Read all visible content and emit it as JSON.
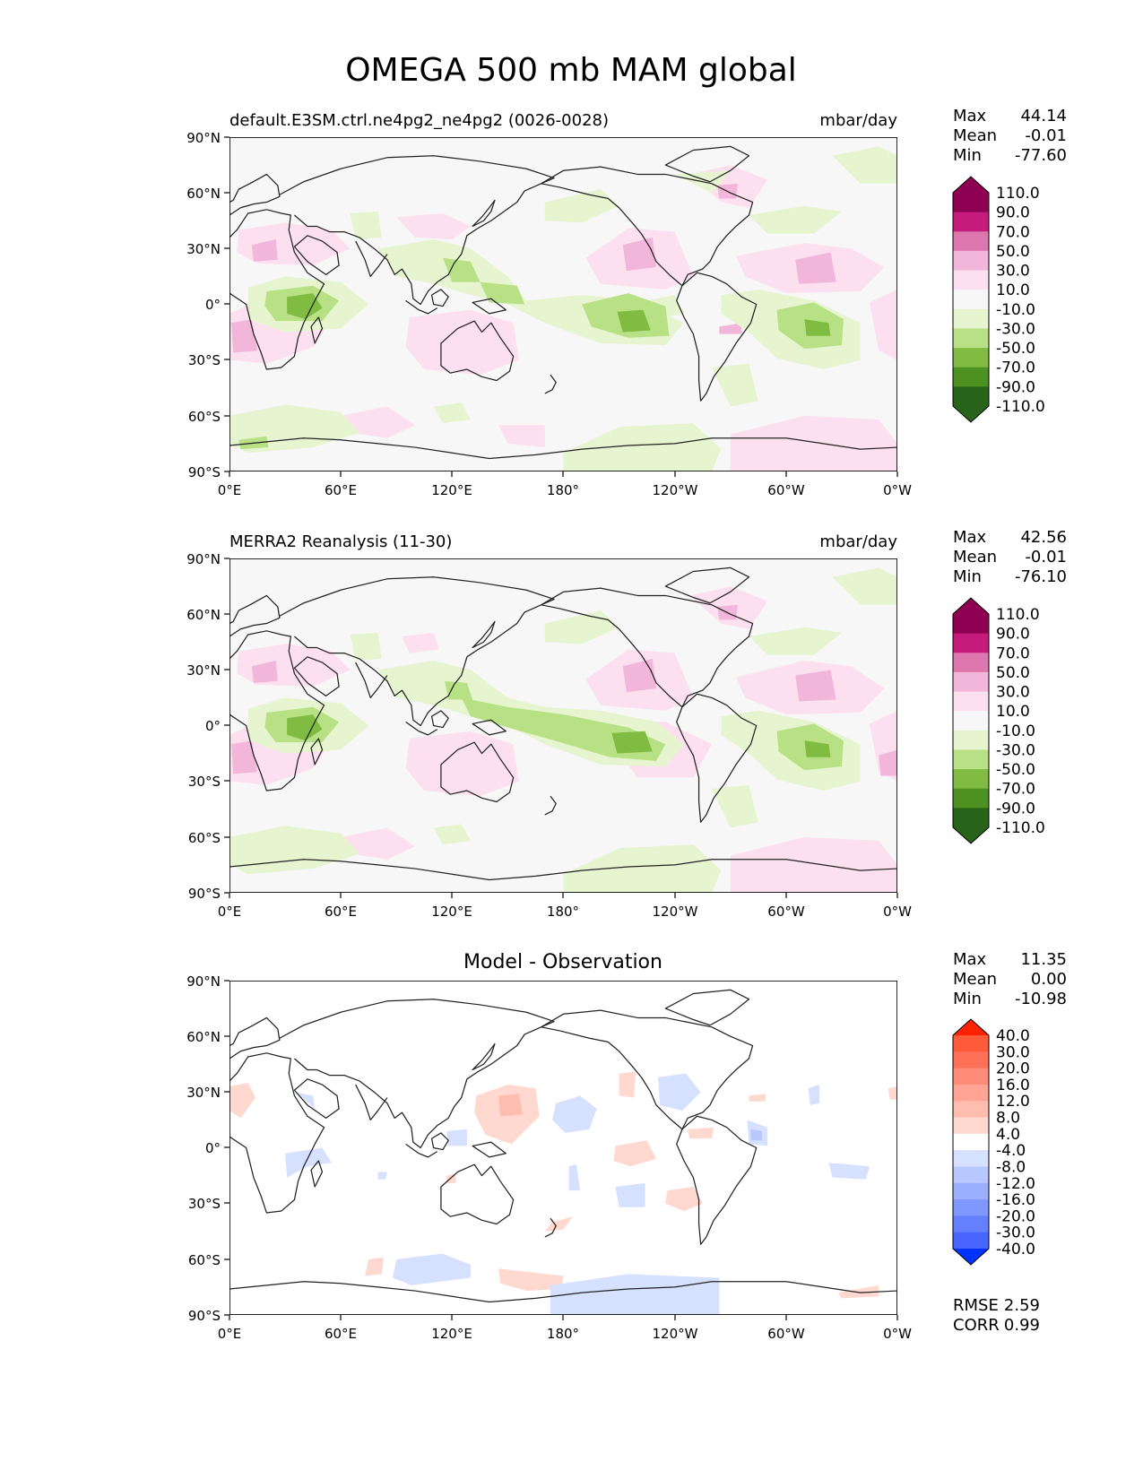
{
  "title": "OMEGA 500 mb MAM global",
  "lat_ticks": [
    "90°N",
    "60°N",
    "30°N",
    "0°",
    "30°S",
    "60°S",
    "90°S"
  ],
  "lon_ticks": [
    "0°E",
    "60°E",
    "120°E",
    "180°",
    "120°W",
    "60°W",
    "0°W"
  ],
  "panels": [
    {
      "id": "test",
      "title_left": "default.E3SM.ctrl.ne4pg2_ne4pg2 (0026-0028)",
      "title_center": "",
      "units": "mbar/day",
      "stats": [
        {
          "label": "Max",
          "value": "44.14"
        },
        {
          "label": "Mean",
          "value": "-0.01"
        },
        {
          "label": "Min",
          "value": "-77.60"
        }
      ],
      "colorbar": {
        "labels": [
          "110.0",
          "90.0",
          "70.0",
          "50.0",
          "30.0",
          "10.0",
          "-10.0",
          "-30.0",
          "-50.0",
          "-70.0",
          "-90.0",
          "-110.0"
        ],
        "colors": [
          "#8e0152",
          "#c51b7d",
          "#de77ae",
          "#f1b6da",
          "#fde0ef",
          "#f7f7f7",
          "#e6f5d0",
          "#b8e186",
          "#7fbc41",
          "#4d9221",
          "#276419"
        ],
        "top_extend": "#8e0152",
        "bottom_extend": "#276419"
      },
      "footer": []
    },
    {
      "id": "reference",
      "title_left": "MERRA2 Reanalysis (11-30)",
      "title_center": "",
      "units": "mbar/day",
      "stats": [
        {
          "label": "Max",
          "value": "42.56"
        },
        {
          "label": "Mean",
          "value": "-0.01"
        },
        {
          "label": "Min",
          "value": "-76.10"
        }
      ],
      "colorbar": {
        "labels": [
          "110.0",
          "90.0",
          "70.0",
          "50.0",
          "30.0",
          "10.0",
          "-10.0",
          "-30.0",
          "-50.0",
          "-70.0",
          "-90.0",
          "-110.0"
        ],
        "colors": [
          "#8e0152",
          "#c51b7d",
          "#de77ae",
          "#f1b6da",
          "#fde0ef",
          "#f7f7f7",
          "#e6f5d0",
          "#b8e186",
          "#7fbc41",
          "#4d9221",
          "#276419"
        ],
        "top_extend": "#8e0152",
        "bottom_extend": "#276419"
      },
      "footer": []
    },
    {
      "id": "diff",
      "title_left": "",
      "title_center": "Model - Observation",
      "units": "",
      "stats": [
        {
          "label": "Max",
          "value": "11.35"
        },
        {
          "label": "Mean",
          "value": "0.00"
        },
        {
          "label": "Min",
          "value": "-10.98"
        }
      ],
      "colorbar": {
        "labels": [
          "40.0",
          "30.0",
          "20.0",
          "16.0",
          "12.0",
          "8.0",
          "4.0",
          "-4.0",
          "-8.0",
          "-12.0",
          "-16.0",
          "-20.0",
          "-30.0",
          "-40.0"
        ],
        "colors": [
          "#ff5a3a",
          "#ff7058",
          "#ff8b78",
          "#ffa494",
          "#ffbdb0",
          "#ffd8cf",
          "#ffffff",
          "#d6e0ff",
          "#b8c8ff",
          "#9bb0ff",
          "#7f98ff",
          "#6480ff",
          "#4866ff"
        ],
        "top_extend": "#ff2200",
        "bottom_extend": "#0033ff"
      },
      "footer": [
        {
          "label": "RMSE",
          "value": "2.59"
        },
        {
          "label": "CORR",
          "value": "0.99"
        }
      ]
    }
  ]
}
